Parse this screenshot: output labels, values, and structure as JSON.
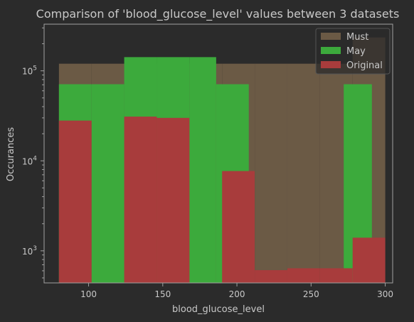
{
  "chart_data": {
    "type": "bar",
    "title": "Comparison of 'blood_glucose_level' values between 3 datasets",
    "xlabel": "blood_glucose_level",
    "ylabel": "Occurances",
    "xlim": [
      70,
      305
    ],
    "ylim": [
      440,
      330000
    ],
    "yscale": "log",
    "x_ticks": [
      100,
      150,
      200,
      250,
      300
    ],
    "y_ticks": [
      {
        "value": 1000,
        "base": "10",
        "exp": "3"
      },
      {
        "value": 10000,
        "base": "10",
        "exp": "4"
      },
      {
        "value": 100000,
        "base": "10",
        "exp": "5"
      }
    ],
    "legend_position": "upper right",
    "series": [
      {
        "name": "Must",
        "color": "#6b5a45",
        "bins": [
          {
            "x0": 80,
            "x1": 102,
            "value": 120000
          },
          {
            "x0": 102,
            "x1": 124,
            "value": 120000
          },
          {
            "x0": 124,
            "x1": 146,
            "value": 120000
          },
          {
            "x0": 146,
            "x1": 168,
            "value": 120000
          },
          {
            "x0": 168,
            "x1": 190,
            "value": 120000
          },
          {
            "x0": 190,
            "x1": 212,
            "value": 120000
          },
          {
            "x0": 212,
            "x1": 234,
            "value": 120000
          },
          {
            "x0": 234,
            "x1": 256,
            "value": 120000
          },
          {
            "x0": 256,
            "x1": 278,
            "value": 120000
          },
          {
            "x0": 278,
            "x1": 300,
            "value": 235000
          }
        ]
      },
      {
        "name": "May",
        "color": "#3caa3c",
        "bins": [
          {
            "x0": 80,
            "x1": 102,
            "value": 71000
          },
          {
            "x0": 102,
            "x1": 124,
            "value": 71000
          },
          {
            "x0": 124,
            "x1": 146,
            "value": 142000
          },
          {
            "x0": 146,
            "x1": 168,
            "value": 142000
          },
          {
            "x0": 168,
            "x1": 186,
            "value": 142000
          },
          {
            "x0": 186,
            "x1": 208,
            "value": 71000
          },
          {
            "x0": 208,
            "x1": 272,
            "value": 0
          },
          {
            "x0": 272,
            "x1": 291,
            "value": 71000
          }
        ]
      },
      {
        "name": "Original",
        "color": "#a83c3c",
        "bins": [
          {
            "x0": 80,
            "x1": 102,
            "value": 28000
          },
          {
            "x0": 124,
            "x1": 146,
            "value": 31000
          },
          {
            "x0": 146,
            "x1": 168,
            "value": 30000
          },
          {
            "x0": 190,
            "x1": 212,
            "value": 7700
          },
          {
            "x0": 212,
            "x1": 234,
            "value": 610
          },
          {
            "x0": 234,
            "x1": 256,
            "value": 640
          },
          {
            "x0": 256,
            "x1": 278,
            "value": 640
          },
          {
            "x0": 278,
            "x1": 300,
            "value": 1400
          }
        ]
      }
    ]
  }
}
